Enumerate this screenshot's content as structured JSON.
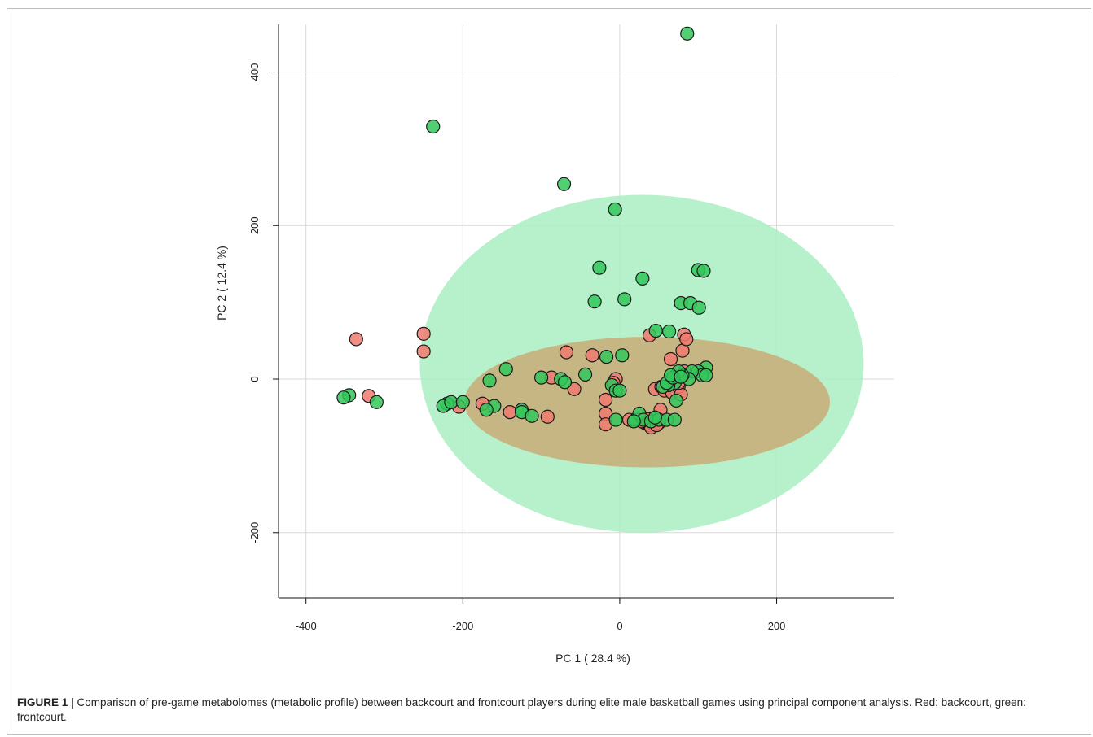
{
  "chart_data": {
    "type": "scatter",
    "xlabel": "PC 1 ( 28.4 %)",
    "ylabel": "PC 2 ( 12.4 %)",
    "xlim": [
      -435,
      350
    ],
    "ylim": [
      -285,
      462
    ],
    "x_ticks": [
      -400,
      -200,
      0,
      200
    ],
    "y_ticks": [
      -200,
      0,
      200,
      400
    ],
    "x_tick_labels": [
      "-400",
      "-200",
      "0",
      "200"
    ],
    "y_tick_labels": [
      "-200",
      "0",
      "200",
      "400"
    ],
    "grid": true,
    "colors": {
      "backcourt_fill": "#f07a6e",
      "frontcourt_fill": "#33c75a",
      "point_edge": "#1a1a1a",
      "backcourt_ellipse": "#c8ab77",
      "frontcourt_ellipse": "#a9efc2",
      "grid": "#d9d9d9"
    },
    "ellipses": [
      {
        "group": "frontcourt",
        "cx": 28,
        "cy": 20,
        "rx": 283,
        "ry": 220
      },
      {
        "group": "backcourt",
        "cx": 35,
        "cy": -30,
        "rx": 233,
        "ry": 85
      }
    ],
    "series": [
      {
        "group": "backcourt",
        "points": [
          [
            -336,
            52
          ],
          [
            -320,
            -22
          ],
          [
            -250,
            59
          ],
          [
            -250,
            36
          ],
          [
            -205,
            -36
          ],
          [
            -175,
            -32
          ],
          [
            -140,
            -43
          ],
          [
            -92,
            -49
          ],
          [
            -87,
            2
          ],
          [
            -68,
            35
          ],
          [
            -58,
            -13
          ],
          [
            -35,
            31
          ],
          [
            -18,
            -27
          ],
          [
            -18,
            -45
          ],
          [
            -18,
            -59
          ],
          [
            -5,
            0
          ],
          [
            -8,
            -5
          ],
          [
            12,
            -53
          ],
          [
            38,
            57
          ],
          [
            45,
            -13
          ],
          [
            52,
            -40
          ],
          [
            53,
            -10
          ],
          [
            57,
            -15
          ],
          [
            65,
            26
          ],
          [
            67,
            -18
          ],
          [
            75,
            -10
          ],
          [
            78,
            -20
          ],
          [
            80,
            37
          ],
          [
            82,
            58
          ],
          [
            85,
            52
          ],
          [
            82,
            10
          ],
          [
            70,
            2
          ],
          [
            75,
            -5
          ],
          [
            32,
            -57
          ],
          [
            38,
            -60
          ],
          [
            42,
            -58
          ],
          [
            45,
            -55
          ],
          [
            35,
            -52
          ],
          [
            40,
            -63
          ],
          [
            50,
            -57
          ],
          [
            28,
            -55
          ],
          [
            47,
            -60
          ]
        ]
      },
      {
        "group": "frontcourt",
        "points": [
          [
            86,
            450
          ],
          [
            -238,
            329
          ],
          [
            -71,
            254
          ],
          [
            -6,
            221
          ],
          [
            -26,
            145
          ],
          [
            29,
            131
          ],
          [
            100,
            142
          ],
          [
            107,
            141
          ],
          [
            -32,
            101
          ],
          [
            6,
            104
          ],
          [
            78,
            99
          ],
          [
            90,
            99
          ],
          [
            101,
            93
          ],
          [
            46,
            63
          ],
          [
            63,
            62
          ],
          [
            -145,
            13
          ],
          [
            -166,
            -2
          ],
          [
            -100,
            2
          ],
          [
            -75,
            0
          ],
          [
            -70,
            -4
          ],
          [
            -44,
            6
          ],
          [
            -17,
            29
          ],
          [
            3,
            31
          ],
          [
            -10,
            -8
          ],
          [
            -5,
            -15
          ],
          [
            0,
            -15
          ],
          [
            -5,
            -53
          ],
          [
            -220,
            -32
          ],
          [
            -225,
            -35
          ],
          [
            -215,
            -30
          ],
          [
            -200,
            -30
          ],
          [
            -160,
            -35
          ],
          [
            -170,
            -40
          ],
          [
            -125,
            -40
          ],
          [
            -125,
            -43
          ],
          [
            -112,
            -48
          ],
          [
            -345,
            -21
          ],
          [
            -352,
            -24
          ],
          [
            -310,
            -30
          ],
          [
            110,
            15
          ],
          [
            100,
            10
          ],
          [
            105,
            5
          ],
          [
            92,
            10
          ],
          [
            88,
            0
          ],
          [
            80,
            5
          ],
          [
            75,
            10
          ],
          [
            70,
            -5
          ],
          [
            62,
            -8
          ],
          [
            55,
            -10
          ],
          [
            60,
            -5
          ],
          [
            68,
            2
          ],
          [
            110,
            5
          ],
          [
            72,
            -28
          ],
          [
            20,
            -53
          ],
          [
            25,
            -45
          ],
          [
            30,
            -53
          ],
          [
            40,
            -55
          ],
          [
            50,
            -53
          ],
          [
            60,
            -53
          ],
          [
            70,
            -53
          ],
          [
            18,
            -55
          ],
          [
            45,
            -50
          ],
          [
            65,
            5
          ],
          [
            78,
            3
          ]
        ]
      }
    ]
  },
  "caption": {
    "label": "FIGURE 1 |",
    "text": " Comparison of pre-game metabolomes (metabolic profile) between backcourt and frontcourt players during elite male basketball games using principal component analysis. Red: backcourt, green: frontcourt."
  }
}
